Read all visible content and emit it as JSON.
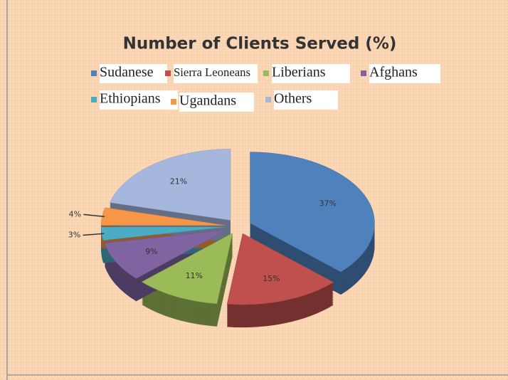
{
  "chart_data": {
    "type": "pie",
    "title": "Number of Clients Served (%)",
    "categories": [
      "Sudanese",
      "Sierra Leoneans",
      "Liberians",
      "Afghans",
      "Ethiopians",
      "Ugandans",
      "Others"
    ],
    "values": [
      37,
      15,
      11,
      9,
      3,
      4,
      21
    ],
    "value_labels": [
      "37%",
      "15%",
      "11%",
      "9%",
      "3%",
      "4%",
      "21%"
    ],
    "colors": [
      "#4f81bd",
      "#c0504d",
      "#9bbb59",
      "#8064a2",
      "#4bacc6",
      "#f79646",
      "#a6b7de"
    ],
    "legend": "top"
  }
}
